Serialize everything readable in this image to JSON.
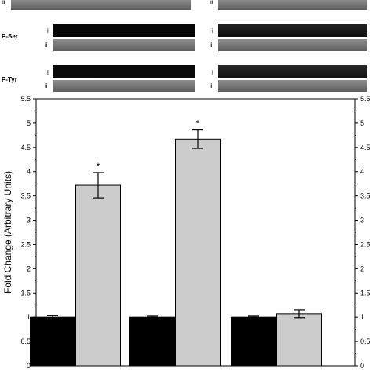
{
  "figure": {
    "blot_rows": [
      {
        "label": "",
        "left_sub": [
          "ii"
        ],
        "right_sub": [
          "ii"
        ]
      },
      {
        "label": "P-Ser",
        "left_sub": [
          "i",
          "ii"
        ],
        "right_sub": [
          "i",
          "ii"
        ]
      },
      {
        "label": "P-Tyr",
        "left_sub": [
          "i",
          "ii"
        ],
        "right_sub": [
          "i",
          "ii"
        ]
      }
    ],
    "significance_marker": "*"
  },
  "chart_data": {
    "type": "bar",
    "ylabel": "Fold Change (Arbitrary Units)",
    "xlabel": "",
    "ylim": [
      0,
      5.5
    ],
    "yticks": [
      "0",
      "0.5",
      "1",
      "1.5",
      "2",
      "2.5",
      "3",
      "3.5",
      "4",
      "4.5",
      "5",
      "5.5"
    ],
    "groups": 3,
    "series": [
      {
        "values": [
          1.0,
          1.0,
          1.0
        ],
        "errors": [
          0.03,
          0.02,
          0.02
        ],
        "color": "#000000"
      },
      {
        "values": [
          3.72,
          4.67,
          1.07
        ],
        "errors": [
          0.26,
          0.19,
          0.08
        ],
        "color": "#cccccc"
      }
    ],
    "significant": [
      [
        false,
        true
      ],
      [
        false,
        true
      ],
      [
        false,
        false
      ]
    ],
    "grid": false,
    "legend": "none"
  }
}
